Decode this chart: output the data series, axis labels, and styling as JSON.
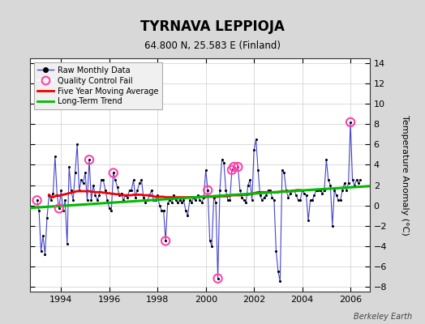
{
  "title": "TYRNAVA LEPPIOJA",
  "subtitle": "64.800 N, 25.583 E (Finland)",
  "ylabel": "Temperature Anomaly (°C)",
  "credit": "Berkeley Earth",
  "xlim": [
    1992.7,
    2006.8
  ],
  "ylim": [
    -8.5,
    14.5
  ],
  "yticks": [
    -8,
    -6,
    -4,
    -2,
    0,
    2,
    4,
    6,
    8,
    10,
    12,
    14
  ],
  "xticks": [
    1994,
    1996,
    1998,
    2000,
    2002,
    2004,
    2006
  ],
  "bg_color": "#d8d8d8",
  "plot_bg_color": "#ffffff",
  "raw_color": "#4444cc",
  "dot_color": "#000000",
  "qc_color": "#ff44aa",
  "moving_avg_color": "#ee0000",
  "trend_color": "#00bb00",
  "raw_data": [
    [
      1993.0,
      0.5
    ],
    [
      1993.083,
      -0.5
    ],
    [
      1993.167,
      -4.5
    ],
    [
      1993.25,
      -3.0
    ],
    [
      1993.333,
      -4.8
    ],
    [
      1993.417,
      -1.2
    ],
    [
      1993.5,
      1.0
    ],
    [
      1993.583,
      0.5
    ],
    [
      1993.667,
      1.2
    ],
    [
      1993.75,
      4.8
    ],
    [
      1993.833,
      1.0
    ],
    [
      1993.917,
      -0.3
    ],
    [
      1994.0,
      1.5
    ],
    [
      1994.083,
      -0.5
    ],
    [
      1994.167,
      0.5
    ],
    [
      1994.25,
      -3.8
    ],
    [
      1994.333,
      3.8
    ],
    [
      1994.417,
      1.5
    ],
    [
      1994.5,
      0.5
    ],
    [
      1994.583,
      3.2
    ],
    [
      1994.667,
      6.0
    ],
    [
      1994.75,
      1.5
    ],
    [
      1994.833,
      2.5
    ],
    [
      1994.917,
      2.2
    ],
    [
      1995.0,
      3.2
    ],
    [
      1995.083,
      0.5
    ],
    [
      1995.167,
      4.5
    ],
    [
      1995.25,
      0.5
    ],
    [
      1995.333,
      2.0
    ],
    [
      1995.417,
      1.0
    ],
    [
      1995.5,
      0.5
    ],
    [
      1995.583,
      1.0
    ],
    [
      1995.667,
      2.5
    ],
    [
      1995.75,
      2.5
    ],
    [
      1995.833,
      1.5
    ],
    [
      1995.917,
      0.5
    ],
    [
      1996.0,
      -0.3
    ],
    [
      1996.083,
      -0.5
    ],
    [
      1996.167,
      3.2
    ],
    [
      1996.25,
      2.5
    ],
    [
      1996.333,
      1.8
    ],
    [
      1996.417,
      1.0
    ],
    [
      1996.5,
      1.2
    ],
    [
      1996.583,
      0.5
    ],
    [
      1996.667,
      1.0
    ],
    [
      1996.75,
      0.8
    ],
    [
      1996.833,
      1.5
    ],
    [
      1996.917,
      1.5
    ],
    [
      1997.0,
      2.5
    ],
    [
      1997.083,
      0.8
    ],
    [
      1997.167,
      1.5
    ],
    [
      1997.25,
      2.2
    ],
    [
      1997.333,
      2.5
    ],
    [
      1997.417,
      0.8
    ],
    [
      1997.5,
      0.3
    ],
    [
      1997.583,
      0.5
    ],
    [
      1997.667,
      1.0
    ],
    [
      1997.75,
      1.5
    ],
    [
      1997.833,
      0.5
    ],
    [
      1997.917,
      0.5
    ],
    [
      1998.0,
      1.0
    ],
    [
      1998.083,
      0.0
    ],
    [
      1998.167,
      -0.5
    ],
    [
      1998.25,
      -0.5
    ],
    [
      1998.333,
      -3.5
    ],
    [
      1998.417,
      0.2
    ],
    [
      1998.5,
      0.5
    ],
    [
      1998.583,
      0.3
    ],
    [
      1998.667,
      1.0
    ],
    [
      1998.75,
      0.5
    ],
    [
      1998.833,
      0.3
    ],
    [
      1998.917,
      0.5
    ],
    [
      1999.0,
      0.3
    ],
    [
      1999.083,
      0.5
    ],
    [
      1999.167,
      -0.5
    ],
    [
      1999.25,
      -1.0
    ],
    [
      1999.333,
      0.5
    ],
    [
      1999.417,
      0.3
    ],
    [
      1999.5,
      0.8
    ],
    [
      1999.583,
      0.5
    ],
    [
      1999.667,
      1.0
    ],
    [
      1999.75,
      0.5
    ],
    [
      1999.833,
      0.3
    ],
    [
      1999.917,
      0.8
    ],
    [
      2000.0,
      3.5
    ],
    [
      2000.083,
      1.5
    ],
    [
      2000.167,
      -3.5
    ],
    [
      2000.25,
      -4.0
    ],
    [
      2000.333,
      0.8
    ],
    [
      2000.417,
      0.3
    ],
    [
      2000.5,
      -7.2
    ],
    [
      2000.583,
      1.5
    ],
    [
      2000.667,
      4.5
    ],
    [
      2000.75,
      4.2
    ],
    [
      2000.833,
      1.5
    ],
    [
      2000.917,
      0.5
    ],
    [
      2001.0,
      0.5
    ],
    [
      2001.083,
      3.5
    ],
    [
      2001.167,
      3.8
    ],
    [
      2001.25,
      3.5
    ],
    [
      2001.333,
      3.8
    ],
    [
      2001.417,
      1.5
    ],
    [
      2001.5,
      0.8
    ],
    [
      2001.583,
      0.5
    ],
    [
      2001.667,
      0.3
    ],
    [
      2001.75,
      2.0
    ],
    [
      2001.833,
      2.5
    ],
    [
      2001.917,
      0.5
    ],
    [
      2002.0,
      5.5
    ],
    [
      2002.083,
      6.5
    ],
    [
      2002.167,
      3.5
    ],
    [
      2002.25,
      1.0
    ],
    [
      2002.333,
      0.5
    ],
    [
      2002.417,
      0.8
    ],
    [
      2002.5,
      1.0
    ],
    [
      2002.583,
      1.5
    ],
    [
      2002.667,
      1.5
    ],
    [
      2002.75,
      0.8
    ],
    [
      2002.833,
      0.5
    ],
    [
      2002.917,
      -4.5
    ],
    [
      2003.0,
      -6.5
    ],
    [
      2003.083,
      -7.5
    ],
    [
      2003.167,
      3.5
    ],
    [
      2003.25,
      3.2
    ],
    [
      2003.333,
      1.5
    ],
    [
      2003.417,
      0.8
    ],
    [
      2003.5,
      1.2
    ],
    [
      2003.583,
      1.5
    ],
    [
      2003.667,
      1.5
    ],
    [
      2003.75,
      1.0
    ],
    [
      2003.833,
      0.5
    ],
    [
      2003.917,
      0.5
    ],
    [
      2004.0,
      1.5
    ],
    [
      2004.083,
      1.2
    ],
    [
      2004.167,
      1.0
    ],
    [
      2004.25,
      -1.5
    ],
    [
      2004.333,
      0.5
    ],
    [
      2004.417,
      0.5
    ],
    [
      2004.5,
      1.0
    ],
    [
      2004.583,
      1.5
    ],
    [
      2004.667,
      1.5
    ],
    [
      2004.75,
      1.5
    ],
    [
      2004.833,
      1.2
    ],
    [
      2004.917,
      1.5
    ],
    [
      2005.0,
      4.5
    ],
    [
      2005.083,
      2.5
    ],
    [
      2005.167,
      2.0
    ],
    [
      2005.25,
      -2.0
    ],
    [
      2005.333,
      1.5
    ],
    [
      2005.417,
      1.0
    ],
    [
      2005.5,
      0.5
    ],
    [
      2005.583,
      0.5
    ],
    [
      2005.667,
      1.5
    ],
    [
      2005.75,
      2.2
    ],
    [
      2005.833,
      1.5
    ],
    [
      2005.917,
      2.2
    ],
    [
      2006.0,
      8.2
    ],
    [
      2006.083,
      2.5
    ],
    [
      2006.167,
      2.0
    ],
    [
      2006.25,
      2.5
    ],
    [
      2006.333,
      2.2
    ],
    [
      2006.417,
      2.5
    ]
  ],
  "qc_fails": [
    [
      1993.0,
      0.5
    ],
    [
      1993.917,
      -0.3
    ],
    [
      1995.167,
      4.5
    ],
    [
      1996.167,
      3.2
    ],
    [
      1998.333,
      -3.5
    ],
    [
      2000.083,
      1.5
    ],
    [
      2000.5,
      -7.2
    ],
    [
      2001.083,
      3.5
    ],
    [
      2001.167,
      3.8
    ],
    [
      2001.333,
      3.8
    ],
    [
      2006.0,
      8.2
    ]
  ],
  "trend_x": [
    1992.7,
    2006.8
  ],
  "trend_y": [
    -0.25,
    1.9
  ],
  "moving_avg": [
    [
      1993.5,
      1.05
    ],
    [
      1993.583,
      0.85
    ],
    [
      1993.667,
      0.8
    ],
    [
      1993.75,
      0.9
    ],
    [
      1993.833,
      1.0
    ],
    [
      1993.917,
      0.95
    ],
    [
      1994.0,
      1.0
    ],
    [
      1994.083,
      1.05
    ],
    [
      1994.167,
      1.1
    ],
    [
      1994.25,
      1.15
    ],
    [
      1994.333,
      1.2
    ],
    [
      1994.417,
      1.25
    ],
    [
      1994.5,
      1.3
    ],
    [
      1994.583,
      1.35
    ],
    [
      1994.667,
      1.4
    ],
    [
      1994.75,
      1.4
    ],
    [
      1994.833,
      1.4
    ],
    [
      1994.917,
      1.4
    ],
    [
      1995.0,
      1.4
    ],
    [
      1995.083,
      1.4
    ],
    [
      1995.167,
      1.4
    ],
    [
      1995.25,
      1.35
    ],
    [
      1995.333,
      1.35
    ],
    [
      1995.417,
      1.3
    ],
    [
      1995.5,
      1.3
    ],
    [
      1995.583,
      1.3
    ],
    [
      1995.667,
      1.3
    ],
    [
      1995.75,
      1.25
    ],
    [
      1995.833,
      1.25
    ],
    [
      1995.917,
      1.2
    ],
    [
      1996.0,
      1.2
    ],
    [
      1996.083,
      1.15
    ],
    [
      1996.167,
      1.15
    ],
    [
      1996.25,
      1.1
    ],
    [
      1996.333,
      1.1
    ],
    [
      1996.417,
      1.1
    ],
    [
      1996.5,
      1.0
    ],
    [
      1996.583,
      1.0
    ],
    [
      1996.667,
      1.0
    ],
    [
      1996.75,
      1.0
    ],
    [
      1996.833,
      1.0
    ],
    [
      1996.917,
      1.0
    ],
    [
      1997.0,
      1.05
    ],
    [
      1997.083,
      1.05
    ],
    [
      1997.167,
      1.05
    ],
    [
      1997.25,
      1.05
    ],
    [
      1997.333,
      1.05
    ],
    [
      1997.417,
      1.0
    ],
    [
      1997.5,
      1.0
    ],
    [
      1997.583,
      1.0
    ],
    [
      1997.667,
      1.0
    ],
    [
      1997.75,
      0.95
    ],
    [
      1997.833,
      0.9
    ],
    [
      1997.917,
      0.85
    ],
    [
      1998.0,
      0.85
    ],
    [
      1998.083,
      0.85
    ],
    [
      1998.167,
      0.85
    ],
    [
      1998.25,
      0.85
    ],
    [
      1998.333,
      0.8
    ],
    [
      1998.417,
      0.8
    ],
    [
      1998.5,
      0.8
    ],
    [
      1998.583,
      0.8
    ],
    [
      1998.667,
      0.8
    ],
    [
      1998.75,
      0.8
    ],
    [
      1998.833,
      0.8
    ],
    [
      1998.917,
      0.8
    ],
    [
      1999.0,
      0.8
    ],
    [
      1999.083,
      0.8
    ],
    [
      1999.167,
      0.8
    ],
    [
      1999.25,
      0.8
    ],
    [
      1999.333,
      0.8
    ],
    [
      1999.417,
      0.8
    ],
    [
      1999.5,
      0.8
    ],
    [
      1999.583,
      0.8
    ],
    [
      1999.667,
      0.85
    ],
    [
      1999.75,
      0.85
    ],
    [
      1999.833,
      0.85
    ],
    [
      1999.917,
      0.85
    ],
    [
      2000.0,
      0.85
    ],
    [
      2000.083,
      0.85
    ],
    [
      2000.167,
      0.85
    ],
    [
      2000.25,
      0.85
    ],
    [
      2000.333,
      0.85
    ],
    [
      2000.417,
      0.85
    ],
    [
      2000.5,
      0.85
    ],
    [
      2000.583,
      0.9
    ],
    [
      2000.667,
      0.9
    ],
    [
      2000.75,
      0.9
    ],
    [
      2000.833,
      0.9
    ],
    [
      2000.917,
      0.9
    ],
    [
      2001.0,
      0.95
    ],
    [
      2001.083,
      1.0
    ],
    [
      2001.167,
      1.0
    ],
    [
      2001.25,
      1.0
    ],
    [
      2001.333,
      1.0
    ],
    [
      2001.417,
      1.0
    ],
    [
      2001.5,
      1.0
    ],
    [
      2001.583,
      1.05
    ],
    [
      2001.667,
      1.05
    ],
    [
      2001.75,
      1.05
    ],
    [
      2001.833,
      1.1
    ],
    [
      2001.917,
      1.1
    ],
    [
      2002.0,
      1.2
    ],
    [
      2002.083,
      1.25
    ],
    [
      2002.167,
      1.3
    ],
    [
      2002.25,
      1.3
    ],
    [
      2002.333,
      1.3
    ],
    [
      2002.417,
      1.3
    ],
    [
      2002.5,
      1.3
    ],
    [
      2002.583,
      1.3
    ],
    [
      2002.667,
      1.3
    ],
    [
      2002.75,
      1.3
    ],
    [
      2002.833,
      1.3
    ],
    [
      2002.917,
      1.3
    ],
    [
      2003.0,
      1.3
    ],
    [
      2003.083,
      1.35
    ],
    [
      2003.167,
      1.4
    ],
    [
      2003.25,
      1.4
    ],
    [
      2003.333,
      1.4
    ],
    [
      2003.417,
      1.4
    ],
    [
      2003.5,
      1.4
    ],
    [
      2003.583,
      1.4
    ],
    [
      2003.667,
      1.45
    ],
    [
      2003.75,
      1.5
    ],
    [
      2003.833,
      1.5
    ],
    [
      2003.917,
      1.5
    ]
  ]
}
